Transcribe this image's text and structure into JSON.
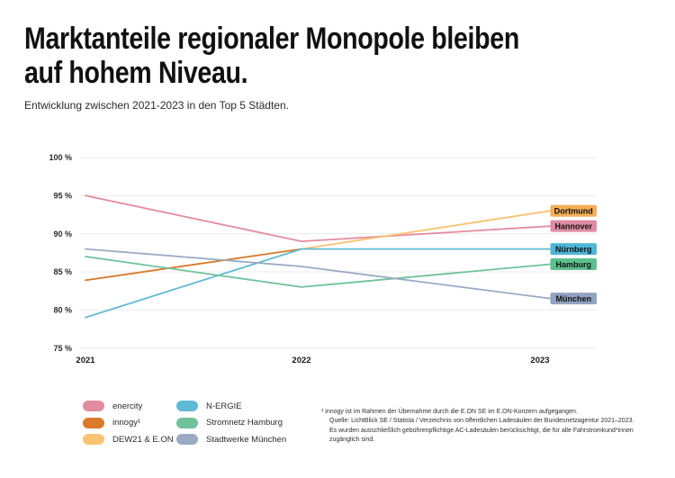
{
  "page": {
    "title_line1": "Marktanteile regionaler Monopole bleiben",
    "title_line2": "auf hohem Niveau.",
    "subtitle": "Entwicklung zwischen 2021-2023 in den Top 5 Städten."
  },
  "chart_data": {
    "type": "line",
    "x": [
      "2021",
      "2022",
      "2023"
    ],
    "y_unit": "%",
    "ylim": [
      75,
      100
    ],
    "yticks": [
      100,
      95,
      90,
      85,
      80,
      75
    ],
    "ytick_suffix": " %",
    "grid": "horizontal",
    "legend_position": "bottom-left",
    "series": [
      {
        "name": "enercity",
        "color": "#E28C9F",
        "values": [
          95,
          89,
          91
        ],
        "end_label": "Hannover",
        "label_color": "#DE8CA4"
      },
      {
        "name": "innogy¹",
        "color": "#DA7A2B",
        "values": [
          83.9,
          88,
          null
        ]
      },
      {
        "name": "DEW21 & E.ON",
        "color": "#FAC273",
        "values": [
          null,
          88,
          93
        ],
        "end_label": "Dortmund",
        "label_color": "#F5AE55"
      },
      {
        "name": "N-ERGIE",
        "color": "#5FBAD4",
        "values": [
          79,
          88,
          88
        ],
        "end_label": "Nürnberg",
        "label_color": "#4FB6D6"
      },
      {
        "name": "Stromnetz Hamburg",
        "color": "#6EC29A",
        "values": [
          87,
          83,
          86
        ],
        "end_label": "Hamburg",
        "label_color": "#5CC08E"
      },
      {
        "name": "Stadtwerke München",
        "color": "#9AAAC4",
        "values": [
          88,
          85.7,
          81.5
        ],
        "end_label": "München",
        "label_color": "#91A3C0"
      }
    ]
  },
  "footnote": {
    "lines": [
      "¹ innogy ist im Rahmen der Übernahme durch die E.ON SE im E.ON-Konzern aufgegangen.",
      "Quelle: LichtBlick SE / Statista / Verzeichnis von öffentlichen Ladesäulen der Bundesnetzagentur 2021–2023.",
      "Es wurden ausschließlich gebührenpflichtige AC-Ladesäulen berücksichtigt, die für alle Fahrstromkund*innen",
      "zugänglich sind."
    ]
  }
}
